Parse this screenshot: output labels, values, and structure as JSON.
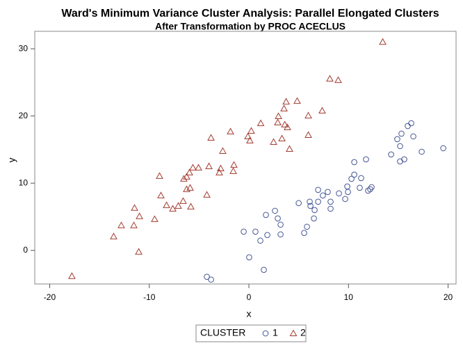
{
  "chart_data": {
    "type": "scatter",
    "title": "Ward's Minimum Variance Cluster Analysis: Parallel Elongated Clusters",
    "subtitle": "After Transformation by PROC ACECLUS",
    "x_label": "x",
    "y_label": "y",
    "xlim": [
      -21.5,
      20.8
    ],
    "ylim": [
      -5.0,
      32.6
    ],
    "xticks": [
      -20,
      -10,
      0,
      10,
      20
    ],
    "yticks": [
      0,
      10,
      20,
      30
    ],
    "grid": false,
    "legend_position": "bottom",
    "legend_title": "CLUSTER",
    "series": [
      {
        "name": "1",
        "color": "#445694",
        "marker": "circle",
        "x": [
          -4.22,
          -3.8,
          1.5,
          0.03,
          -0.52,
          0.66,
          1.15,
          1.85,
          1.71,
          2.62,
          2.9,
          3.18,
          3.18,
          5.55,
          5.83,
          5.0,
          6.11,
          6.18,
          6.53,
          6.6,
          6.95,
          6.95,
          7.43,
          7.92,
          8.2,
          8.2,
          9.04,
          9.67,
          9.88,
          9.95,
          10.3,
          10.58,
          10.58,
          11.27,
          11.13,
          11.76,
          11.97,
          12.18,
          12.32,
          14.28,
          14.9,
          15.18,
          15.32,
          15.18,
          15.6,
          15.95,
          16.3,
          16.51,
          17.35,
          19.52
        ],
        "values": [
          -3.93,
          -4.34,
          -2.9,
          -1.03,
          2.79,
          2.79,
          1.45,
          2.28,
          5.27,
          5.89,
          4.76,
          3.83,
          2.38,
          2.59,
          3.52,
          7.03,
          7.24,
          6.62,
          4.76,
          6.0,
          7.24,
          9.0,
          8.17,
          8.69,
          7.24,
          6.2,
          8.48,
          7.65,
          9.51,
          8.69,
          10.65,
          11.27,
          13.13,
          10.75,
          9.31,
          13.55,
          8.89,
          9.1,
          9.41,
          14.27,
          16.55,
          15.51,
          17.37,
          13.24,
          13.55,
          18.51,
          18.92,
          16.96,
          14.68,
          15.2
        ]
      },
      {
        "name": "2",
        "color": "#a23a2e",
        "marker": "triangle",
        "x": [
          -17.77,
          -13.58,
          -12.81,
          -11.55,
          -11.48,
          -11.06,
          -10.99,
          -9.46,
          -8.97,
          -8.83,
          -8.27,
          -7.64,
          -7.09,
          -6.6,
          -6.53,
          -6.25,
          -6.25,
          -5.97,
          -5.9,
          -5.83,
          -5.62,
          -5.06,
          -4.22,
          -4.01,
          -3.8,
          -2.97,
          -2.83,
          -2.62,
          -1.85,
          -1.57,
          -1.5,
          -0.1,
          0.1,
          0.24,
          1.19,
          2.48,
          2.9,
          2.97,
          3.32,
          3.53,
          3.6,
          3.74,
          3.87,
          4.08,
          4.85,
          5.97,
          5.97,
          7.36,
          8.13,
          8.97,
          13.44
        ],
        "values": [
          -3.83,
          2.07,
          3.72,
          3.72,
          6.31,
          -0.21,
          5.07,
          4.65,
          11.07,
          8.17,
          6.72,
          6.2,
          6.62,
          7.34,
          10.65,
          9.1,
          10.96,
          11.58,
          9.31,
          6.51,
          12.31,
          12.31,
          8.27,
          12.51,
          16.75,
          11.58,
          12.2,
          14.79,
          17.68,
          11.79,
          12.72,
          16.96,
          16.34,
          17.79,
          18.92,
          16.13,
          19.03,
          19.96,
          16.65,
          21.1,
          18.72,
          22.13,
          18.3,
          15.1,
          22.23,
          17.17,
          20.06,
          20.79,
          25.54,
          25.34,
          31.02
        ]
      }
    ]
  }
}
